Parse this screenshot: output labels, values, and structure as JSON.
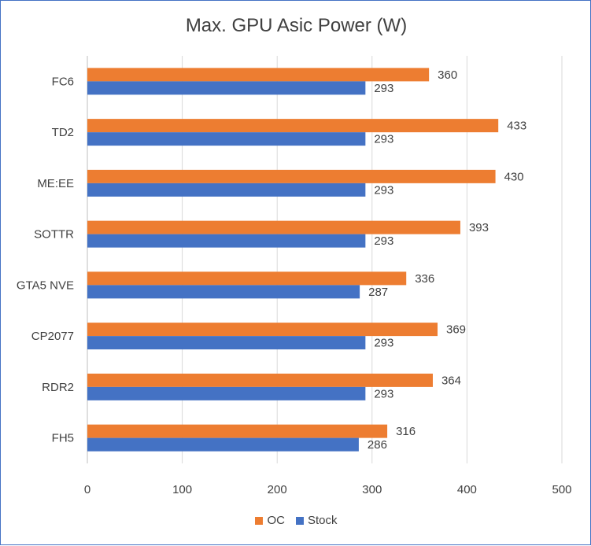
{
  "chart_data": {
    "type": "bar",
    "orientation": "horizontal",
    "title": "Max. GPU Asic Power (W)",
    "categories": [
      "FC6",
      "TD2",
      "ME:EE",
      "SOTTR",
      "GTA5 NVE",
      "CP2077",
      "RDR2",
      "FH5"
    ],
    "series": [
      {
        "name": "OC",
        "color": "#ed7d31",
        "values": [
          360,
          433,
          430,
          393,
          336,
          369,
          364,
          316
        ]
      },
      {
        "name": "Stock",
        "color": "#4472c4",
        "values": [
          293,
          293,
          293,
          293,
          287,
          293,
          293,
          286
        ]
      }
    ],
    "xlim": [
      0,
      500
    ],
    "xticks": [
      0,
      100,
      200,
      300,
      400,
      500
    ],
    "grid": true,
    "legend": "bottom"
  }
}
